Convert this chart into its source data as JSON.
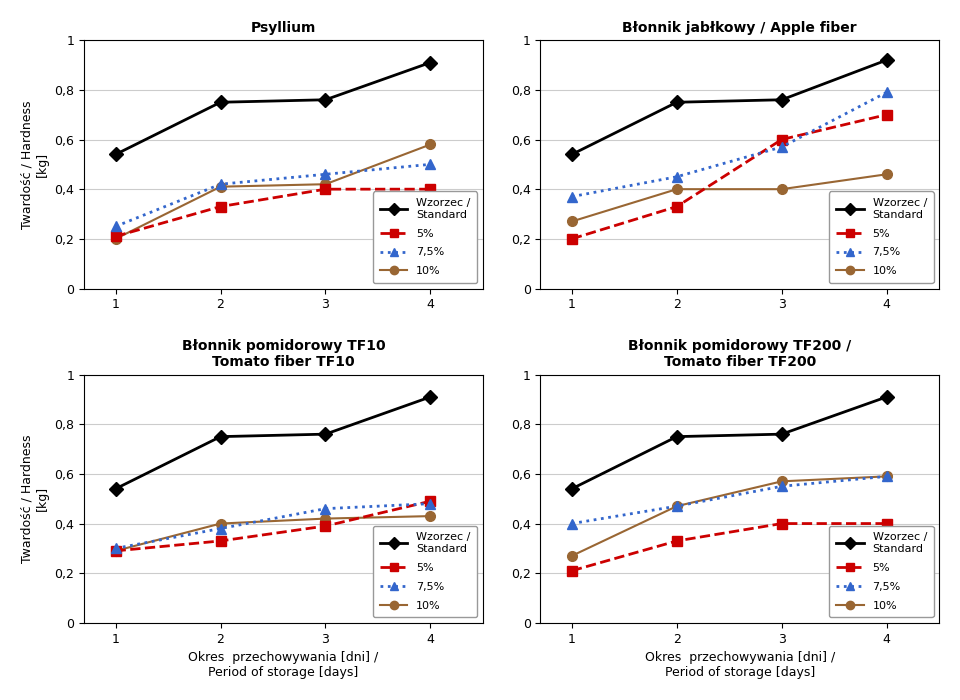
{
  "panels": [
    {
      "title_line1": "Psyllium",
      "title_line2": "",
      "wzorzec": [
        0.54,
        0.75,
        0.76,
        0.91
      ],
      "pct5": [
        0.21,
        0.33,
        0.4,
        0.4
      ],
      "pct7_5": [
        0.25,
        0.42,
        0.46,
        0.5
      ],
      "pct10": [
        0.2,
        0.41,
        0.42,
        0.58
      ]
    },
    {
      "title_line1": "Błonnik jabłkowy / Apple fiber",
      "title_line2": "",
      "wzorzec": [
        0.54,
        0.75,
        0.76,
        0.92
      ],
      "pct5": [
        0.2,
        0.33,
        0.6,
        0.7
      ],
      "pct7_5": [
        0.37,
        0.45,
        0.57,
        0.79
      ],
      "pct10": [
        0.27,
        0.4,
        0.4,
        0.46
      ]
    },
    {
      "title_line1": "Błonnik pomidorowy TF10",
      "title_line2": "Tomato fiber TF10",
      "wzorzec": [
        0.54,
        0.75,
        0.76,
        0.91
      ],
      "pct5": [
        0.29,
        0.33,
        0.39,
        0.49
      ],
      "pct7_5": [
        0.3,
        0.38,
        0.46,
        0.48
      ],
      "pct10": [
        0.29,
        0.4,
        0.42,
        0.43
      ]
    },
    {
      "title_line1": "Błonnik pomidorowy TF200 /",
      "title_line2": "Tomato fiber TF200",
      "wzorzec": [
        0.54,
        0.75,
        0.76,
        0.91
      ],
      "pct5": [
        0.21,
        0.33,
        0.4,
        0.4
      ],
      "pct7_5": [
        0.4,
        0.47,
        0.55,
        0.59
      ],
      "pct10": [
        0.27,
        0.47,
        0.57,
        0.59
      ]
    }
  ],
  "x": [
    1,
    2,
    3,
    4
  ],
  "xlabel_line1": "Okres  przechowywania [dni] /",
  "xlabel_line2": "Period of storage [days]",
  "ylabel": "Twardość / Hardness\n[kg]",
  "ylim": [
    0,
    1
  ],
  "yticks": [
    0,
    0.2,
    0.4,
    0.6,
    0.8,
    1
  ],
  "ytick_labels": [
    "0",
    "0,2",
    "0,4",
    "0,6",
    "0,8",
    "1"
  ],
  "colors": {
    "wzorzec": "#000000",
    "pct5": "#cc0000",
    "pct7_5": "#3366cc",
    "pct10": "#996633"
  },
  "legend_labels": [
    "Wzorzec /\nStandard",
    "5%",
    "7,5%",
    "10%"
  ],
  "bg_color": "#ffffff"
}
